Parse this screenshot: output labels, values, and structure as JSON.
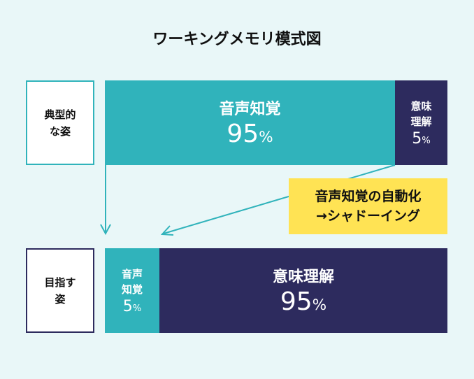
{
  "title": "ワーキングメモリ模式図",
  "typical": {
    "label_line1": "典型的",
    "label_line2": "な姿",
    "perception": {
      "label": "音声知覚",
      "value": "95",
      "unit": "%"
    },
    "meaning": {
      "label_line1": "意味",
      "label_line2": "理解",
      "value": "5",
      "unit": "%"
    }
  },
  "goal": {
    "label_line1": "目指す",
    "label_line2": "姿",
    "perception": {
      "label_line1": "音声",
      "label_line2": "知覚",
      "value": "5",
      "unit": "%"
    },
    "meaning": {
      "label": "意味理解",
      "value": "95",
      "unit": "%"
    }
  },
  "note": {
    "line1": "音声知覚の自動化",
    "line2": "→シャドーイング"
  },
  "colors": {
    "teal": "#30b3bb",
    "navy": "#2d2b5e",
    "yellow": "#ffe354"
  }
}
